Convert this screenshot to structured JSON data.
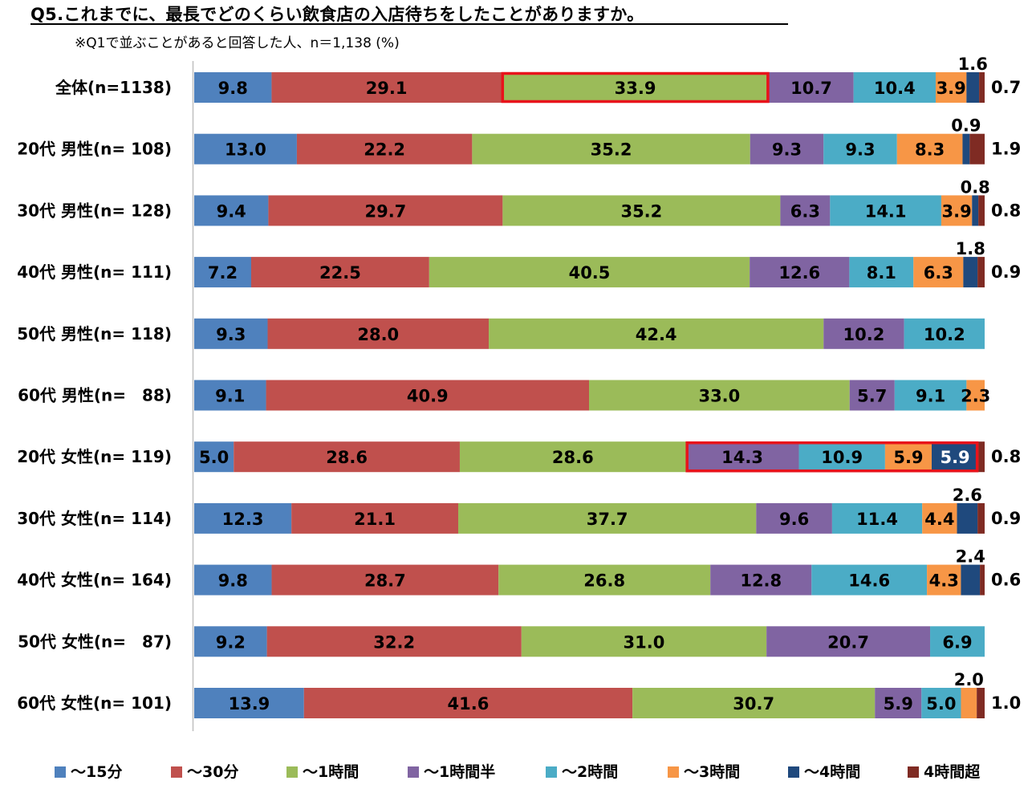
{
  "title": "Q5.これまでに、最長でどのくらい飲食店の入店待ちをしたことがありますか。",
  "subtitle": "※Q1で並ぶことがあると回答した人、n＝1,138 (%)",
  "chart_data": {
    "type": "bar",
    "orientation": "horizontal",
    "stacked": "percent",
    "title": "Q5.これまでに、最長でどのくらい飲食店の入店待ちをしたことがありますか。",
    "categories": [
      "全体(n=1138)",
      "20代 男性(n= 108)",
      "30代 男性(n= 128)",
      "40代 男性(n= 111)",
      "50代 男性(n= 118)",
      "60代 男性(n=　88)",
      "20代 女性(n= 119)",
      "30代 女性(n= 114)",
      "40代 女性(n= 164)",
      "50代 女性(n=　87)",
      "60代 女性(n= 101)"
    ],
    "series": [
      {
        "name": "～15分",
        "color": "#4F81BD",
        "values": [
          9.8,
          13.0,
          9.4,
          7.2,
          9.3,
          9.1,
          5.0,
          12.3,
          9.8,
          9.2,
          13.9
        ]
      },
      {
        "name": "～30分",
        "color": "#C0504D",
        "values": [
          29.1,
          22.2,
          29.7,
          22.5,
          28.0,
          40.9,
          28.6,
          21.1,
          28.7,
          32.2,
          41.6
        ]
      },
      {
        "name": "～1時間",
        "color": "#9BBB59",
        "values": [
          33.9,
          35.2,
          35.2,
          40.5,
          42.4,
          33.0,
          28.6,
          37.7,
          26.8,
          31.0,
          30.7
        ]
      },
      {
        "name": "～1時間半",
        "color": "#8064A2",
        "values": [
          10.7,
          9.3,
          6.3,
          12.6,
          10.2,
          5.7,
          14.3,
          9.6,
          12.8,
          20.7,
          5.9
        ]
      },
      {
        "name": "～2時間",
        "color": "#4BACC6",
        "values": [
          10.4,
          9.3,
          14.1,
          8.1,
          10.2,
          9.1,
          10.9,
          11.4,
          14.6,
          6.9,
          5.0
        ]
      },
      {
        "name": "～3時間",
        "color": "#F79646",
        "values": [
          3.9,
          8.3,
          3.9,
          6.3,
          0,
          2.3,
          5.9,
          4.4,
          4.3,
          0,
          2.0
        ]
      },
      {
        "name": "～4時間",
        "color": "#1F497D",
        "values": [
          1.6,
          0.9,
          0.8,
          1.8,
          0,
          0,
          5.9,
          2.6,
          2.4,
          0,
          0
        ]
      },
      {
        "name": "4時間超",
        "color": "#7F2B23",
        "values": [
          0.7,
          1.9,
          0.8,
          0.9,
          0,
          0,
          0.8,
          0.9,
          0.6,
          0,
          1.0
        ]
      }
    ],
    "data_labels": [
      [
        {
          "text": "9.8"
        },
        {
          "text": "29.1"
        },
        {
          "text": "33.9"
        },
        {
          "text": "10.7"
        },
        {
          "text": "10.4"
        },
        {
          "text": "3.9"
        },
        {
          "text": "1.6",
          "pos": "above"
        },
        {
          "text": "0.7",
          "pos": "right"
        }
      ],
      [
        {
          "text": "13.0"
        },
        {
          "text": "22.2"
        },
        {
          "text": "35.2"
        },
        {
          "text": "9.3"
        },
        {
          "text": "9.3"
        },
        {
          "text": "8.3"
        },
        {
          "text": "0.9",
          "pos": "above"
        },
        {
          "text": "1.9",
          "pos": "right"
        }
      ],
      [
        {
          "text": "9.4"
        },
        {
          "text": "29.7"
        },
        {
          "text": "35.2"
        },
        {
          "text": "6.3"
        },
        {
          "text": "14.1"
        },
        {
          "text": "3.9"
        },
        {
          "text": "0.8",
          "pos": "above"
        },
        {
          "text": "0.8",
          "pos": "right"
        }
      ],
      [
        {
          "text": "7.2"
        },
        {
          "text": "22.5"
        },
        {
          "text": "40.5"
        },
        {
          "text": "12.6"
        },
        {
          "text": "8.1"
        },
        {
          "text": "6.3"
        },
        {
          "text": "1.8",
          "pos": "above"
        },
        {
          "text": "0.9",
          "pos": "right"
        }
      ],
      [
        {
          "text": "9.3"
        },
        {
          "text": "28.0"
        },
        {
          "text": "42.4"
        },
        {
          "text": "10.2"
        },
        {
          "text": "10.2"
        },
        null,
        null,
        null
      ],
      [
        {
          "text": "9.1"
        },
        {
          "text": "40.9"
        },
        {
          "text": "33.0"
        },
        {
          "text": "5.7"
        },
        {
          "text": "9.1"
        },
        {
          "text": "2.3"
        },
        null,
        null
      ],
      [
        {
          "text": "5.0"
        },
        {
          "text": "28.6"
        },
        {
          "text": "28.6"
        },
        {
          "text": "14.3"
        },
        {
          "text": "10.9"
        },
        {
          "text": "5.9"
        },
        {
          "text": "5.9"
        },
        {
          "text": "0.8",
          "pos": "right"
        }
      ],
      [
        {
          "text": "12.3"
        },
        {
          "text": "21.1"
        },
        {
          "text": "37.7"
        },
        {
          "text": "9.6"
        },
        {
          "text": "11.4"
        },
        {
          "text": "4.4"
        },
        {
          "text": "2.6",
          "pos": "above"
        },
        {
          "text": "0.9",
          "pos": "right"
        }
      ],
      [
        {
          "text": "9.8"
        },
        {
          "text": "28.7"
        },
        {
          "text": "26.8"
        },
        {
          "text": "12.8"
        },
        {
          "text": "14.6"
        },
        {
          "text": "4.3"
        },
        {
          "text": "2.4",
          "pos": "above"
        },
        {
          "text": "0.6",
          "pos": "right"
        }
      ],
      [
        {
          "text": "9.2"
        },
        {
          "text": "32.2"
        },
        {
          "text": "31.0"
        },
        {
          "text": "20.7"
        },
        {
          "text": "6.9"
        },
        null,
        null,
        null
      ],
      [
        {
          "text": "13.9"
        },
        {
          "text": "41.6"
        },
        {
          "text": "30.7"
        },
        {
          "text": "5.9"
        },
        {
          "text": "5.0"
        },
        {
          "text": "2.0",
          "pos": "above"
        },
        null,
        {
          "text": "1.0",
          "pos": "right"
        }
      ]
    ],
    "highlights": [
      {
        "row": 0,
        "from_series": 2,
        "to_series": 2,
        "color": "#E8131B"
      },
      {
        "row": 6,
        "from_series": 3,
        "to_series": 6,
        "color": "#E8131B"
      }
    ],
    "legend_position": "bottom",
    "xlim": [
      0,
      100
    ],
    "grid": false
  }
}
